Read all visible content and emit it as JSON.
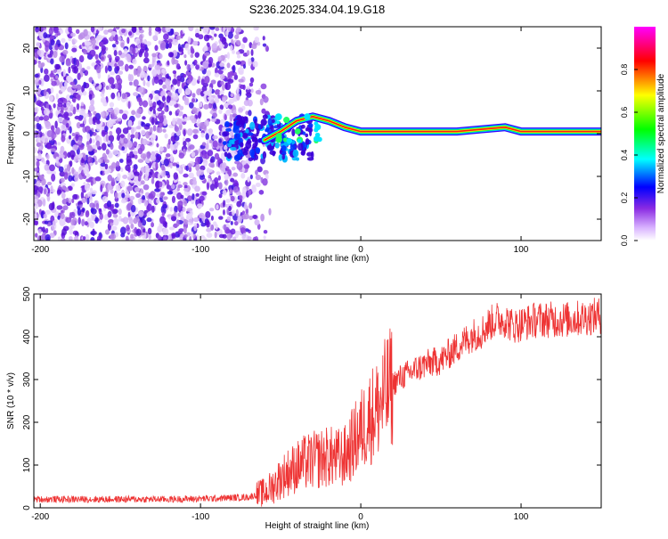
{
  "figure": {
    "title": "S236.2025.334.04.19.G18"
  },
  "chart_data": [
    {
      "type": "heatmap",
      "name": "spectrogram",
      "title": "S236.2025.334.04.19.G18",
      "xlabel": "Height of straight line (km)",
      "ylabel": "Frequency (Hz)",
      "xlim": [
        -204,
        150
      ],
      "ylim": [
        -25,
        25
      ],
      "xticks": [
        -200,
        -100,
        0,
        100
      ],
      "yticks": [
        -20,
        -10,
        0,
        10,
        20
      ],
      "colorbar": {
        "label": "Normalized spectral amplitude",
        "range": [
          0,
          1
        ],
        "ticks": [
          0,
          0.2,
          0.4,
          0.6,
          0.8
        ],
        "colormap": [
          "#ffffff",
          "#8a2be2",
          "#0000ff",
          "#00ffff",
          "#00ff00",
          "#ffff00",
          "#ff0000",
          "#ff00ff"
        ]
      },
      "ridge": [
        {
          "x": -60,
          "f": -1.5
        },
        {
          "x": -50,
          "f": 0.5
        },
        {
          "x": -40,
          "f": 3
        },
        {
          "x": -30,
          "f": 4
        },
        {
          "x": -20,
          "f": 3
        },
        {
          "x": -10,
          "f": 1.5
        },
        {
          "x": 0,
          "f": 0.5
        },
        {
          "x": 20,
          "f": 0.5
        },
        {
          "x": 40,
          "f": 0.5
        },
        {
          "x": 60,
          "f": 0.5
        },
        {
          "x": 75,
          "f": 1
        },
        {
          "x": 90,
          "f": 1.5
        },
        {
          "x": 100,
          "f": 0.5
        },
        {
          "x": 120,
          "f": 0.5
        },
        {
          "x": 150,
          "f": 0.5
        }
      ]
    },
    {
      "type": "line",
      "name": "snr",
      "xlabel": "Height of straight line (km)",
      "ylabel": "SNR (10 * v/v)",
      "xlim": [
        -204,
        150
      ],
      "ylim": [
        0,
        500
      ],
      "xticks": [
        -200,
        -100,
        0,
        100
      ],
      "yticks": [
        0,
        100,
        200,
        300,
        400,
        500
      ],
      "color": "#ee3333",
      "series": [
        {
          "name": "SNR",
          "x": [
            -204,
            -180,
            -150,
            -120,
            -90,
            -70,
            -60,
            -55,
            -50,
            -45,
            -40,
            -35,
            -30,
            -25,
            -20,
            -15,
            -10,
            -5,
            0,
            5,
            10,
            15,
            20,
            25,
            30,
            35,
            40,
            45,
            50,
            55,
            60,
            65,
            70,
            75,
            80,
            85,
            90,
            95,
            100,
            110,
            120,
            130,
            140,
            150
          ],
          "y": [
            20,
            20,
            20,
            20,
            22,
            25,
            35,
            50,
            70,
            85,
            95,
            105,
            110,
            115,
            120,
            115,
            120,
            150,
            180,
            210,
            230,
            260,
            290,
            305,
            315,
            325,
            335,
            340,
            345,
            360,
            375,
            390,
            405,
            410,
            430,
            440,
            440,
            425,
            430,
            440,
            440,
            440,
            445,
            450
          ]
        }
      ]
    }
  ]
}
